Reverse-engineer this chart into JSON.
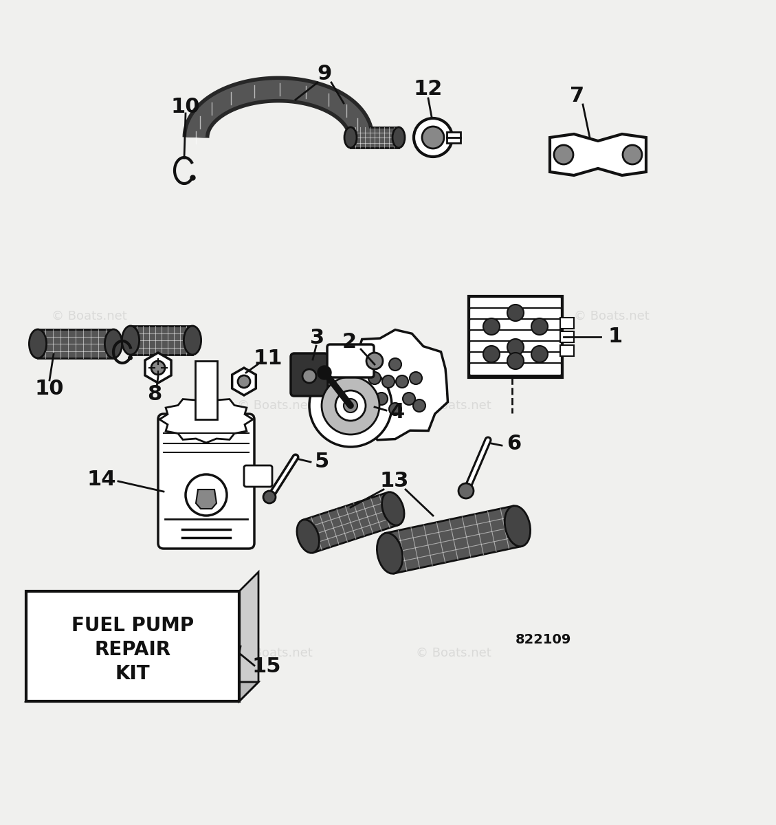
{
  "bg_color": "#f0f0ee",
  "title_line1": "FUEL PUMP",
  "title_line2": "REPAIR",
  "title_line3": "KIT",
  "catalog_number": "822109",
  "watermark": "© Boats.net",
  "black": "#111111",
  "white": "#ffffff",
  "gray_dark": "#333333",
  "gray_mid": "#777777",
  "gray_light": "#aaaaaa"
}
